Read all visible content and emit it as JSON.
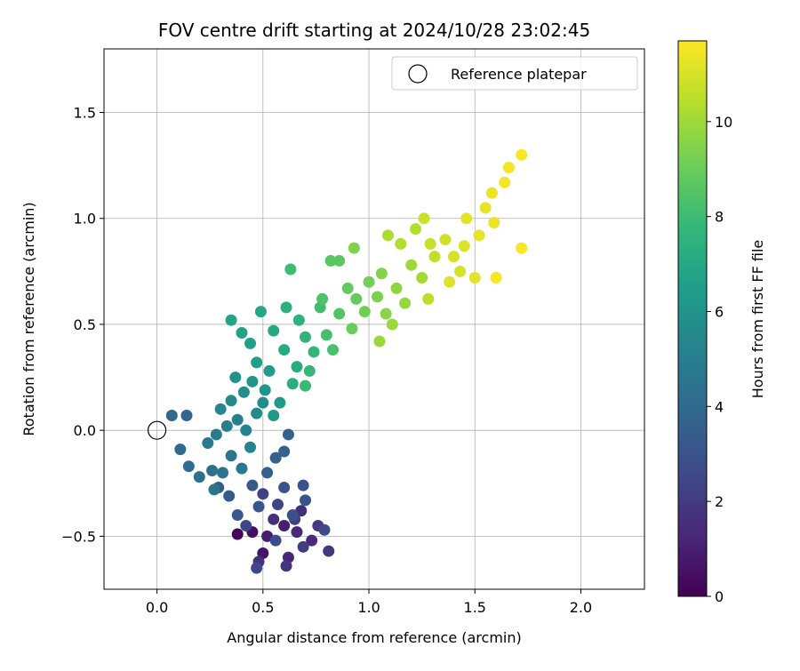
{
  "chart_data": {
    "type": "scatter",
    "title": "FOV centre drift starting at 2024/10/28 23:02:45",
    "xlabel": "Angular distance from reference (arcmin)",
    "ylabel": "Rotation from reference (arcmin)",
    "xlim": [
      -0.25,
      2.3
    ],
    "ylim": [
      -0.75,
      1.8
    ],
    "xticks": [
      0.0,
      0.5,
      1.0,
      1.5,
      2.0
    ],
    "yticks": [
      -0.5,
      0.0,
      0.5,
      1.0,
      1.5
    ],
    "xtick_labels": [
      "0.0",
      "0.5",
      "1.0",
      "1.5",
      "2.0"
    ],
    "ytick_labels": [
      "−0.5",
      "0.0",
      "0.5",
      "1.0",
      "1.5"
    ],
    "grid": true,
    "legend": {
      "placement": "top-right",
      "entries": [
        {
          "label": "Reference platepar",
          "marker": "hollow-circle"
        }
      ]
    },
    "reference_point": {
      "x": 0.0,
      "y": 0.0,
      "label": "Reference platepar"
    },
    "colorbar": {
      "label": "Hours from first FF file",
      "colormap": "viridis",
      "range": [
        0,
        11.7
      ],
      "ticks": [
        0,
        2,
        4,
        6,
        8,
        10
      ],
      "tick_labels": [
        "0",
        "2",
        "4",
        "6",
        "8",
        "10"
      ]
    },
    "colormap_stops": [
      "#440154",
      "#482878",
      "#3e4a89",
      "#31688e",
      "#26828e",
      "#1f9e89",
      "#35b779",
      "#6ece58",
      "#b5de2b",
      "#fde725"
    ],
    "series": [
      {
        "color_by": "hours_from_first_ff_file",
        "points": [
          {
            "x": 0.38,
            "y": -0.49,
            "h": 0.1
          },
          {
            "x": 0.45,
            "y": -0.48,
            "h": 0.4
          },
          {
            "x": 0.5,
            "y": -0.58,
            "h": 0.6
          },
          {
            "x": 0.52,
            "y": -0.5,
            "h": 0.9
          },
          {
            "x": 0.6,
            "y": -0.45,
            "h": 1.0
          },
          {
            "x": 0.62,
            "y": -0.6,
            "h": 1.2
          },
          {
            "x": 0.66,
            "y": -0.48,
            "h": 1.3
          },
          {
            "x": 0.73,
            "y": -0.52,
            "h": 1.4
          },
          {
            "x": 0.68,
            "y": -0.38,
            "h": 1.5
          },
          {
            "x": 0.55,
            "y": -0.42,
            "h": 1.6
          },
          {
            "x": 0.48,
            "y": -0.62,
            "h": 1.7
          },
          {
            "x": 0.61,
            "y": -0.64,
            "h": 1.8
          },
          {
            "x": 0.81,
            "y": -0.57,
            "h": 1.9
          },
          {
            "x": 0.76,
            "y": -0.45,
            "h": 2.0
          },
          {
            "x": 0.69,
            "y": -0.55,
            "h": 2.1
          },
          {
            "x": 0.65,
            "y": -0.42,
            "h": 2.2
          },
          {
            "x": 0.5,
            "y": -0.3,
            "h": 2.3
          },
          {
            "x": 0.57,
            "y": -0.35,
            "h": 2.4
          },
          {
            "x": 0.42,
            "y": -0.45,
            "h": 2.5
          },
          {
            "x": 0.47,
            "y": -0.65,
            "h": 2.5
          },
          {
            "x": 0.79,
            "y": -0.47,
            "h": 2.6
          },
          {
            "x": 0.56,
            "y": -0.52,
            "h": 2.7
          },
          {
            "x": 0.64,
            "y": -0.4,
            "h": 2.8
          },
          {
            "x": 0.69,
            "y": -0.26,
            "h": 2.9
          },
          {
            "x": 0.7,
            "y": -0.33,
            "h": 3.0
          },
          {
            "x": 0.6,
            "y": -0.27,
            "h": 3.0
          },
          {
            "x": 0.48,
            "y": -0.36,
            "h": 3.1
          },
          {
            "x": 0.38,
            "y": -0.4,
            "h": 3.2
          },
          {
            "x": 0.45,
            "y": -0.26,
            "h": 3.2
          },
          {
            "x": 0.34,
            "y": -0.31,
            "h": 3.3
          },
          {
            "x": 0.29,
            "y": -0.27,
            "h": 3.4
          },
          {
            "x": 0.52,
            "y": -0.2,
            "h": 3.5
          },
          {
            "x": 0.56,
            "y": -0.13,
            "h": 3.6
          },
          {
            "x": 0.6,
            "y": -0.1,
            "h": 3.6
          },
          {
            "x": 0.62,
            "y": -0.02,
            "h": 3.7
          },
          {
            "x": 0.14,
            "y": 0.07,
            "h": 3.8
          },
          {
            "x": 0.07,
            "y": 0.07,
            "h": 3.9
          },
          {
            "x": 0.11,
            "y": -0.09,
            "h": 4.0
          },
          {
            "x": 0.15,
            "y": -0.17,
            "h": 4.1
          },
          {
            "x": 0.2,
            "y": -0.22,
            "h": 4.2
          },
          {
            "x": 0.26,
            "y": -0.19,
            "h": 4.3
          },
          {
            "x": 0.31,
            "y": -0.2,
            "h": 4.4
          },
          {
            "x": 0.27,
            "y": -0.28,
            "h": 4.5
          },
          {
            "x": 0.35,
            "y": -0.12,
            "h": 4.6
          },
          {
            "x": 0.4,
            "y": -0.18,
            "h": 4.7
          },
          {
            "x": 0.24,
            "y": -0.06,
            "h": 4.8
          },
          {
            "x": 0.28,
            "y": -0.02,
            "h": 4.9
          },
          {
            "x": 0.33,
            "y": 0.02,
            "h": 5.0
          },
          {
            "x": 0.38,
            "y": 0.05,
            "h": 5.1
          },
          {
            "x": 0.42,
            "y": 0.0,
            "h": 5.2
          },
          {
            "x": 0.44,
            "y": -0.08,
            "h": 5.3
          },
          {
            "x": 0.3,
            "y": 0.1,
            "h": 5.4
          },
          {
            "x": 0.35,
            "y": 0.14,
            "h": 5.5
          },
          {
            "x": 0.47,
            "y": 0.08,
            "h": 5.6
          },
          {
            "x": 0.5,
            "y": 0.13,
            "h": 5.7
          },
          {
            "x": 0.41,
            "y": 0.18,
            "h": 5.8
          },
          {
            "x": 0.37,
            "y": 0.25,
            "h": 5.9
          },
          {
            "x": 0.45,
            "y": 0.23,
            "h": 6.0
          },
          {
            "x": 0.51,
            "y": 0.19,
            "h": 6.1
          },
          {
            "x": 0.55,
            "y": 0.07,
            "h": 6.2
          },
          {
            "x": 0.58,
            "y": 0.13,
            "h": 6.3
          },
          {
            "x": 0.53,
            "y": 0.28,
            "h": 6.4
          },
          {
            "x": 0.47,
            "y": 0.32,
            "h": 6.5
          },
          {
            "x": 0.44,
            "y": 0.41,
            "h": 6.6
          },
          {
            "x": 0.4,
            "y": 0.46,
            "h": 6.7
          },
          {
            "x": 0.35,
            "y": 0.52,
            "h": 6.8
          },
          {
            "x": 0.49,
            "y": 0.56,
            "h": 6.9
          },
          {
            "x": 0.55,
            "y": 0.47,
            "h": 7.0
          },
          {
            "x": 0.6,
            "y": 0.38,
            "h": 7.1
          },
          {
            "x": 0.66,
            "y": 0.3,
            "h": 7.2
          },
          {
            "x": 0.64,
            "y": 0.22,
            "h": 7.3
          },
          {
            "x": 0.61,
            "y": 0.58,
            "h": 7.4
          },
          {
            "x": 0.67,
            "y": 0.52,
            "h": 7.5
          },
          {
            "x": 0.7,
            "y": 0.44,
            "h": 7.6
          },
          {
            "x": 0.74,
            "y": 0.37,
            "h": 7.7
          },
          {
            "x": 0.72,
            "y": 0.28,
            "h": 7.8
          },
          {
            "x": 0.7,
            "y": 0.21,
            "h": 7.9
          },
          {
            "x": 0.63,
            "y": 0.76,
            "h": 8.0
          },
          {
            "x": 0.77,
            "y": 0.58,
            "h": 8.1
          },
          {
            "x": 0.8,
            "y": 0.45,
            "h": 8.2
          },
          {
            "x": 0.83,
            "y": 0.38,
            "h": 8.3
          },
          {
            "x": 0.78,
            "y": 0.62,
            "h": 8.4
          },
          {
            "x": 0.86,
            "y": 0.55,
            "h": 8.5
          },
          {
            "x": 0.82,
            "y": 0.8,
            "h": 8.6
          },
          {
            "x": 0.86,
            "y": 0.8,
            "h": 8.7
          },
          {
            "x": 0.9,
            "y": 0.67,
            "h": 8.8
          },
          {
            "x": 0.94,
            "y": 0.62,
            "h": 8.9
          },
          {
            "x": 0.92,
            "y": 0.48,
            "h": 9.0
          },
          {
            "x": 0.98,
            "y": 0.56,
            "h": 9.1
          },
          {
            "x": 1.0,
            "y": 0.7,
            "h": 9.2
          },
          {
            "x": 1.04,
            "y": 0.63,
            "h": 9.3
          },
          {
            "x": 0.93,
            "y": 0.86,
            "h": 9.4
          },
          {
            "x": 1.06,
            "y": 0.74,
            "h": 9.5
          },
          {
            "x": 1.08,
            "y": 0.55,
            "h": 9.6
          },
          {
            "x": 1.13,
            "y": 0.67,
            "h": 9.7
          },
          {
            "x": 1.17,
            "y": 0.6,
            "h": 9.8
          },
          {
            "x": 1.11,
            "y": 0.5,
            "h": 9.9
          },
          {
            "x": 1.05,
            "y": 0.42,
            "h": 9.9
          },
          {
            "x": 1.2,
            "y": 0.78,
            "h": 10.0
          },
          {
            "x": 1.25,
            "y": 0.72,
            "h": 10.1
          },
          {
            "x": 1.09,
            "y": 0.92,
            "h": 10.2
          },
          {
            "x": 1.15,
            "y": 0.88,
            "h": 10.3
          },
          {
            "x": 1.22,
            "y": 0.95,
            "h": 10.4
          },
          {
            "x": 1.28,
            "y": 0.62,
            "h": 10.5
          },
          {
            "x": 1.31,
            "y": 0.82,
            "h": 10.6
          },
          {
            "x": 1.29,
            "y": 0.88,
            "h": 10.7
          },
          {
            "x": 1.26,
            "y": 1.0,
            "h": 10.8
          },
          {
            "x": 1.36,
            "y": 0.9,
            "h": 10.9
          },
          {
            "x": 1.4,
            "y": 0.82,
            "h": 11.0
          },
          {
            "x": 1.43,
            "y": 0.75,
            "h": 11.0
          },
          {
            "x": 1.38,
            "y": 0.7,
            "h": 11.1
          },
          {
            "x": 1.45,
            "y": 0.87,
            "h": 11.1
          },
          {
            "x": 1.46,
            "y": 1.0,
            "h": 11.2
          },
          {
            "x": 1.5,
            "y": 0.72,
            "h": 11.2
          },
          {
            "x": 1.52,
            "y": 0.92,
            "h": 11.3
          },
          {
            "x": 1.55,
            "y": 1.05,
            "h": 11.3
          },
          {
            "x": 1.58,
            "y": 1.12,
            "h": 11.4
          },
          {
            "x": 1.59,
            "y": 0.98,
            "h": 11.4
          },
          {
            "x": 1.64,
            "y": 1.17,
            "h": 11.5
          },
          {
            "x": 1.66,
            "y": 1.24,
            "h": 11.5
          },
          {
            "x": 1.72,
            "y": 1.3,
            "h": 11.6
          },
          {
            "x": 1.72,
            "y": 0.86,
            "h": 11.6
          },
          {
            "x": 1.6,
            "y": 0.72,
            "h": 11.6
          }
        ]
      }
    ]
  }
}
